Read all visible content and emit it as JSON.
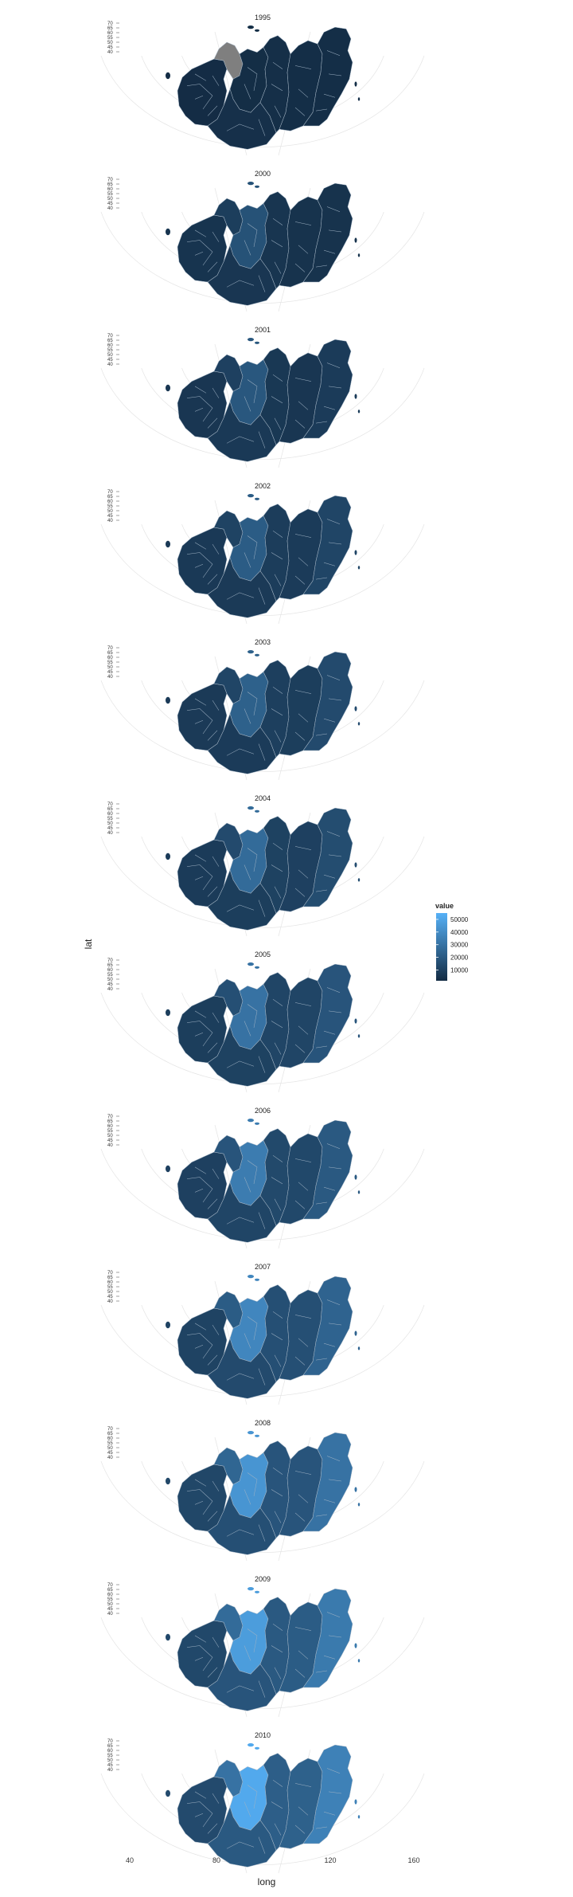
{
  "chart_data": {
    "type": "choropleth",
    "facet_by": "year",
    "panels": [
      {
        "title": "1995",
        "year": 1995,
        "values": [
          2000,
          3000,
          2500,
          3500,
          3000,
          2600,
          2600
        ],
        "missing": [
          1
        ]
      },
      {
        "title": "2000",
        "year": 2000,
        "values": [
          5000,
          9000,
          17000,
          6000,
          5500,
          4500,
          4500
        ],
        "missing": []
      },
      {
        "title": "2001",
        "year": 2001,
        "values": [
          6000,
          10000,
          19000,
          7000,
          6500,
          6000,
          8000
        ],
        "missing": []
      },
      {
        "title": "2002",
        "year": 2002,
        "values": [
          7000,
          11000,
          21000,
          7500,
          8500,
          8000,
          12000
        ],
        "missing": []
      },
      {
        "title": "2003",
        "year": 2003,
        "values": [
          7500,
          12000,
          23000,
          8000,
          9500,
          9000,
          14000
        ],
        "missing": []
      },
      {
        "title": "2004",
        "year": 2004,
        "values": [
          8000,
          14000,
          27000,
          9000,
          10500,
          10000,
          15000
        ],
        "missing": []
      },
      {
        "title": "2005",
        "year": 2005,
        "values": [
          9000,
          16000,
          30000,
          10500,
          12000,
          12000,
          18000
        ],
        "missing": []
      },
      {
        "title": "2006",
        "year": 2006,
        "values": [
          10000,
          18000,
          34000,
          12000,
          13500,
          13000,
          20000
        ],
        "missing": []
      },
      {
        "title": "2007",
        "year": 2007,
        "values": [
          11000,
          21000,
          38000,
          14000,
          16000,
          16000,
          24000
        ],
        "missing": []
      },
      {
        "title": "2008",
        "year": 2008,
        "values": [
          12500,
          25000,
          44000,
          16000,
          18000,
          18000,
          30000
        ],
        "missing": []
      },
      {
        "title": "2009",
        "year": 2009,
        "values": [
          13000,
          27000,
          47000,
          18000,
          20000,
          21000,
          33000
        ],
        "missing": []
      },
      {
        "title": "2010",
        "year": 2010,
        "values": [
          14000,
          30000,
          52000,
          20000,
          22000,
          23000,
          36000
        ],
        "missing": []
      }
    ],
    "xlabel": "long",
    "ylabel": "lat",
    "xticks": [
      "40",
      "80",
      "120",
      "160"
    ],
    "yticks": [
      "70",
      "65",
      "60",
      "55",
      "50",
      "45",
      "40"
    ],
    "legend": {
      "title": "value",
      "labels": [
        "50000",
        "40000",
        "30000",
        "20000",
        "10000"
      ],
      "position": "right",
      "scale_min": 1500,
      "scale_max": 55000,
      "color_low": "#132b43",
      "color_high": "#56b1f7",
      "missing_color": "#7f7f7f"
    },
    "grid": true
  }
}
